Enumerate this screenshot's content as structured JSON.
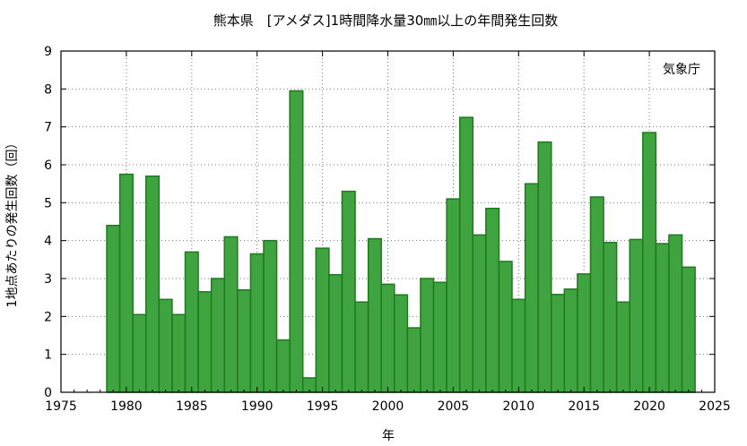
{
  "chart_data": {
    "type": "bar",
    "title": "熊本県　[アメダス]1時間降水量30㎜以上の年間発生回数",
    "xlabel": "年",
    "ylabel": "1地点あたりの発生回数（回）",
    "source_note": "気象庁",
    "xlim": [
      1975,
      2025
    ],
    "ylim": [
      0,
      9
    ],
    "x_ticks": [
      1975,
      1980,
      1985,
      1990,
      1995,
      2000,
      2005,
      2010,
      2015,
      2020,
      2025
    ],
    "y_ticks": [
      0,
      1,
      2,
      3,
      4,
      5,
      6,
      7,
      8,
      9
    ],
    "grid": true,
    "bar_color": "#3fa33f",
    "bar_edge_color": "#1f7a1f",
    "x": [
      1979,
      1980,
      1981,
      1982,
      1983,
      1984,
      1985,
      1986,
      1987,
      1988,
      1989,
      1990,
      1991,
      1992,
      1993,
      1994,
      1995,
      1996,
      1997,
      1998,
      1999,
      2000,
      2001,
      2002,
      2003,
      2004,
      2005,
      2006,
      2007,
      2008,
      2009,
      2010,
      2011,
      2012,
      2013,
      2014,
      2015,
      2016,
      2017,
      2018,
      2019,
      2020,
      2021,
      2022,
      2023
    ],
    "values": [
      4.4,
      5.75,
      2.05,
      5.7,
      2.45,
      2.05,
      3.7,
      2.65,
      3.0,
      4.1,
      2.7,
      3.65,
      4.0,
      1.38,
      7.95,
      0.38,
      3.8,
      3.1,
      5.3,
      2.38,
      4.05,
      2.85,
      2.57,
      1.7,
      3.0,
      2.9,
      5.1,
      7.25,
      4.15,
      4.85,
      3.45,
      2.45,
      5.5,
      6.6,
      2.58,
      2.72,
      3.12,
      5.15,
      3.95,
      2.38,
      4.03,
      6.85,
      3.92,
      4.15,
      3.3
    ]
  }
}
